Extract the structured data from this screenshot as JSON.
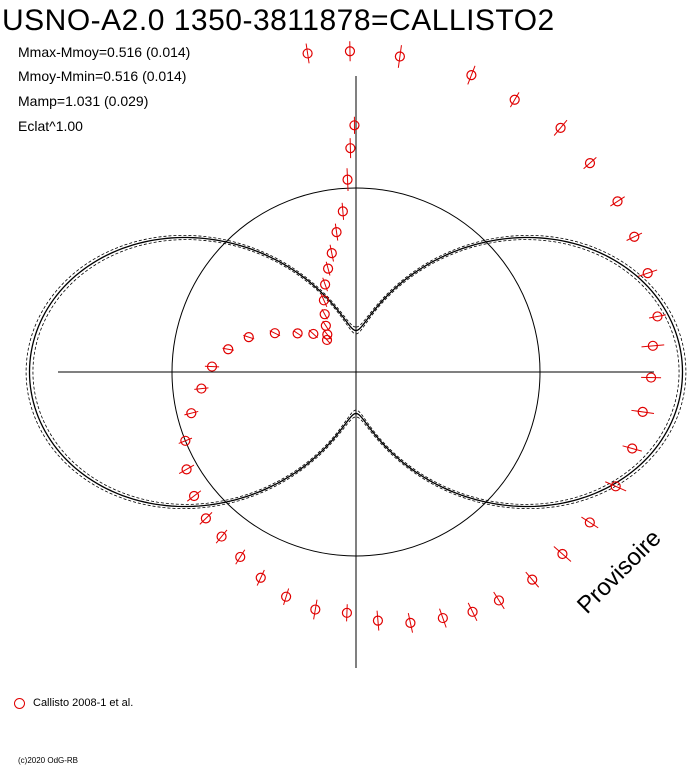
{
  "title": "USNO-A2.0 1350-3811878=CALLISTO2",
  "stats": [
    "Mmax-Mmoy=0.516 (0.014)",
    "Mmoy-Mmin=0.516 (0.014)",
    "Mamp=1.031 (0.029)",
    "Eclat^1.00"
  ],
  "watermark": "Provisoire",
  "legend_label": "Callisto 2008-1 et al.",
  "copyright": "(c)2020 OdG-RB",
  "colors": {
    "observations": "#e00000",
    "model": "#000000",
    "axes": "#000000"
  },
  "chart_data": {
    "type": "scatter",
    "projection": "polar",
    "amplitude": 1.031,
    "model_series": {
      "a1": 0.0,
      "b1": 0.0,
      "a2": -0.5155,
      "b2": 0.0
    },
    "series": [
      {
        "name": "Callisto 2008-1 et al.",
        "marker": "open-circle",
        "points": [
          [
            0.022,
            0.972,
            0.08
          ],
          [
            0.059,
            0.972,
            0.07
          ],
          [
            0.084,
            0.96,
            0.06
          ],
          [
            0.111,
            0.972,
            0.07
          ],
          [
            0.134,
            0.955,
            0.06
          ],
          [
            0.158,
            0.95,
            0.06
          ],
          [
            0.178,
            0.94,
            0.06
          ],
          [
            0.198,
            0.935,
            0.07
          ],
          [
            0.221,
            0.93,
            0.06
          ],
          [
            0.236,
            0.9,
            0.08
          ],
          [
            0.253,
            0.89,
            0.07
          ],
          [
            0.272,
            0.87,
            0.08
          ],
          [
            0.293,
            0.86,
            0.07
          ],
          [
            0.316,
            0.85,
            0.08
          ],
          [
            0.341,
            0.83,
            0.07
          ],
          [
            0.365,
            0.82,
            0.08
          ],
          [
            0.388,
            0.81,
            0.07
          ],
          [
            0.411,
            0.8,
            0.07
          ],
          [
            0.428,
            0.79,
            0.07
          ],
          [
            0.446,
            0.77,
            0.07
          ],
          [
            0.466,
            0.755,
            0.07
          ],
          [
            0.486,
            0.73,
            0.07
          ],
          [
            0.506,
            0.7,
            0.06
          ],
          [
            0.527,
            0.7,
            0.07
          ],
          [
            0.548,
            0.68,
            0.06
          ],
          [
            0.569,
            0.65,
            0.06
          ],
          [
            0.589,
            0.62,
            0.06
          ],
          [
            0.609,
            0.6,
            0.06
          ],
          [
            0.627,
            0.59,
            0.06
          ],
          [
            0.646,
            0.57,
            0.06
          ],
          [
            0.667,
            0.54,
            0.06
          ],
          [
            0.689,
            0.5,
            0.05
          ],
          [
            0.711,
            0.45,
            0.05
          ],
          [
            0.733,
            0.4,
            0.05
          ],
          [
            0.756,
            0.36,
            0.05
          ],
          [
            0.778,
            0.31,
            0.04
          ],
          [
            0.8,
            0.25,
            0.04
          ],
          [
            0.821,
            0.17,
            0.04
          ],
          [
            0.843,
            0.1,
            0.03
          ],
          [
            0.866,
            0.055,
            0.04
          ],
          [
            0.883,
            0.006,
            0.03
          ],
          [
            0.896,
            0.02,
            0.04
          ],
          [
            0.908,
            0.048,
            0.04
          ],
          [
            0.921,
            0.085,
            0.04
          ],
          [
            0.933,
            0.13,
            0.05
          ],
          [
            0.946,
            0.18,
            0.05
          ],
          [
            0.958,
            0.23,
            0.05
          ],
          [
            0.968,
            0.28,
            0.06
          ],
          [
            0.978,
            0.35,
            0.06
          ],
          [
            0.987,
            0.42,
            0.06
          ],
          [
            0.993,
            0.53,
            0.08
          ],
          [
            0.996,
            0.64,
            0.07
          ],
          [
            0.999,
            0.72,
            0.06
          ],
          [
            0.997,
            0.98,
            0.07
          ],
          [
            0.976,
            0.985,
            0.07
          ]
        ]
      }
    ]
  }
}
